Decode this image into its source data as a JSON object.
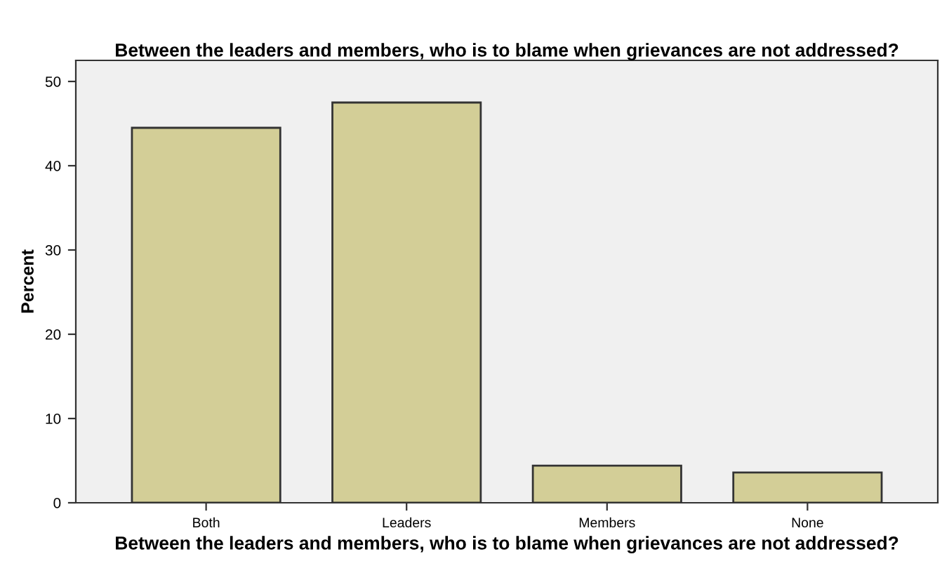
{
  "chart_data": {
    "type": "bar",
    "title": "Between the leaders and members, who is to blame when grievances are not addressed?",
    "xlabel": "Between the leaders and members, who is to blame when grievances are not addressed?",
    "ylabel": "Percent",
    "categories": [
      "Both",
      "Leaders",
      "Members",
      "None"
    ],
    "values": [
      44.5,
      47.5,
      4.4,
      3.6
    ],
    "color": "#d3ce97",
    "ylim": [
      0,
      52.5
    ],
    "yticks": [
      0,
      10,
      20,
      30,
      40,
      50
    ],
    "grid": false
  }
}
